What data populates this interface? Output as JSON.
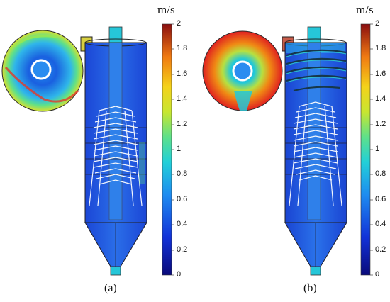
{
  "panels": [
    {
      "label": "(a)",
      "unit": "m/s",
      "colorbar_ticks": [
        "2",
        "1.8",
        "1.6",
        "1.4",
        "1.2",
        "1",
        "0.8",
        "0.6",
        "0.4",
        "0.2",
        "0"
      ]
    },
    {
      "label": "(b)",
      "unit": "m/s",
      "colorbar_ticks": [
        "2",
        "1.8",
        "1.6",
        "1.4",
        "1.2",
        "1",
        "0.8",
        "0.6",
        "0.4",
        "0.2",
        "0"
      ]
    }
  ],
  "colors": {
    "low": "#1a1a8c",
    "vessel": "#1f5fe0",
    "mid": "#27c4c4",
    "high": "#e02020"
  }
}
